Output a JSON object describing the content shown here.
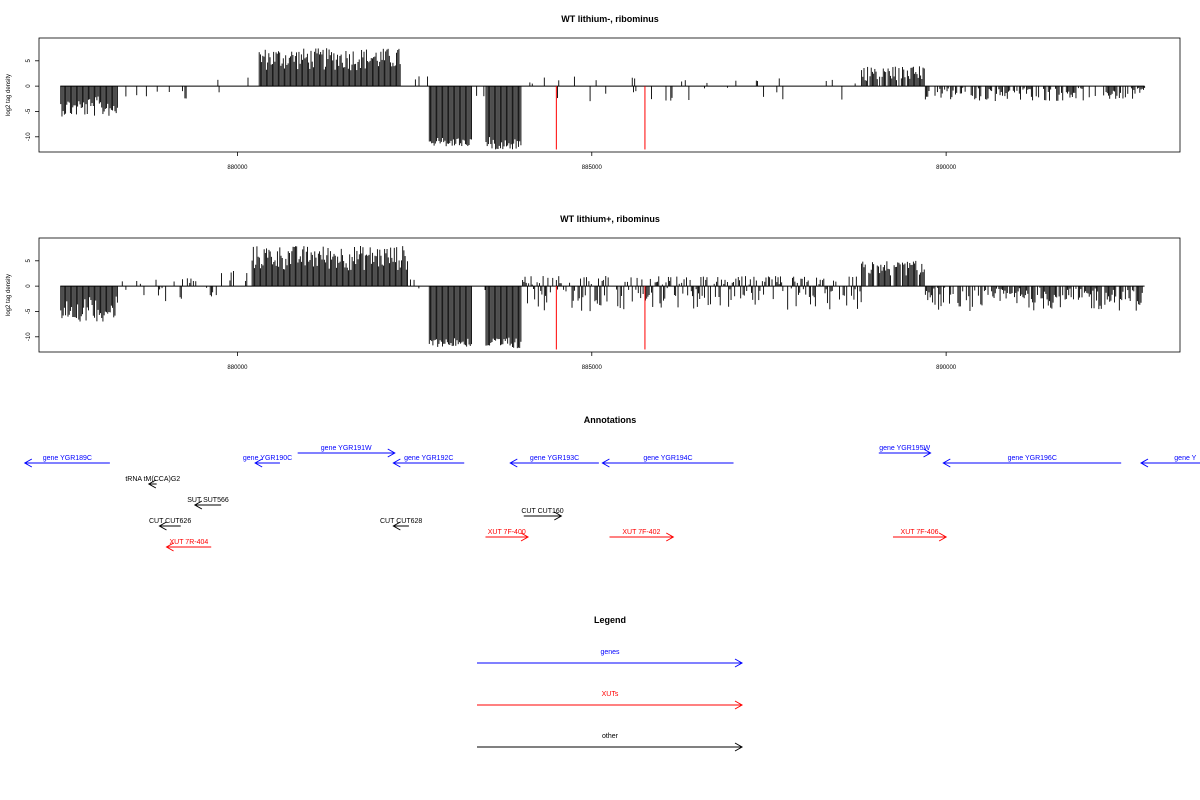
{
  "chart_data": [
    {
      "type": "bar",
      "title": "WT lithium-, ribominus",
      "ylabel": "log2 tag density",
      "xlim": [
        877200,
        893300
      ],
      "ylim": [
        -13,
        9.5
      ],
      "xticks": [
        880000,
        885000,
        890000
      ],
      "yticks": [
        5,
        0,
        -5,
        -10
      ],
      "xtick_labels": [
        "880000",
        "885000",
        "890000"
      ],
      "ytick_labels": [
        "5",
        "0",
        "-5",
        "-10"
      ],
      "profile": [
        {
          "from": 877500,
          "to": 878300,
          "values": [
            -2,
            -6
          ],
          "density": 1
        },
        {
          "from": 878300,
          "to": 879700,
          "values": [
            -3,
            0
          ],
          "density": 0.15
        },
        {
          "from": 879700,
          "to": 880200,
          "values": [
            -2,
            2
          ],
          "density": 0.2
        },
        {
          "from": 880300,
          "to": 882300,
          "values": [
            3,
            7.5
          ],
          "density": 1
        },
        {
          "from": 882300,
          "to": 882700,
          "values": [
            0,
            2
          ],
          "density": 0.2
        },
        {
          "from": 882700,
          "to": 883300,
          "values": [
            -10,
            -12
          ],
          "density": 1
        },
        {
          "from": 883300,
          "to": 883500,
          "values": [
            -3,
            0
          ],
          "density": 0.3
        },
        {
          "from": 883500,
          "to": 884000,
          "values": [
            -10,
            -12.5
          ],
          "density": 1
        },
        {
          "from": 884000,
          "to": 888800,
          "values": [
            -3,
            2
          ],
          "density": 0.15
        },
        {
          "from": 888800,
          "to": 889700,
          "values": [
            1,
            4
          ],
          "density": 0.8
        },
        {
          "from": 889700,
          "to": 892800,
          "values": [
            -3,
            0
          ],
          "density": 0.7
        }
      ],
      "highlight_x": [
        884500,
        885750
      ],
      "highlight_y": -12.5,
      "highlight_color": "#ff0000"
    },
    {
      "type": "bar",
      "title": "WT lithium+, ribominus",
      "ylabel": "log2 tag density",
      "xlim": [
        877200,
        893300
      ],
      "ylim": [
        -13,
        9.5
      ],
      "xticks": [
        880000,
        885000,
        890000
      ],
      "yticks": [
        5,
        0,
        -5,
        -10
      ],
      "xtick_labels": [
        "880000",
        "885000",
        "890000"
      ],
      "ytick_labels": [
        "5",
        "0",
        "-5",
        "-10"
      ],
      "profile": [
        {
          "from": 877500,
          "to": 878300,
          "values": [
            -2,
            -7
          ],
          "density": 1
        },
        {
          "from": 878300,
          "to": 879700,
          "values": [
            -3,
            2
          ],
          "density": 0.25
        },
        {
          "from": 879700,
          "to": 880200,
          "values": [
            0,
            3
          ],
          "density": 0.3
        },
        {
          "from": 880200,
          "to": 882400,
          "values": [
            3,
            8
          ],
          "density": 1
        },
        {
          "from": 882400,
          "to": 882700,
          "values": [
            -1,
            2
          ],
          "density": 0.3
        },
        {
          "from": 882700,
          "to": 883300,
          "values": [
            -10,
            -12
          ],
          "density": 1
        },
        {
          "from": 883300,
          "to": 883500,
          "values": [
            -2,
            0
          ],
          "density": 0.3
        },
        {
          "from": 883500,
          "to": 884000,
          "values": [
            -10,
            -12.5
          ],
          "density": 1
        },
        {
          "from": 884000,
          "to": 888800,
          "values": [
            -5,
            2
          ],
          "density": 0.85
        },
        {
          "from": 888800,
          "to": 889700,
          "values": [
            2,
            5
          ],
          "density": 0.9
        },
        {
          "from": 889700,
          "to": 892800,
          "values": [
            -5,
            0
          ],
          "density": 0.85
        }
      ],
      "highlight_x": [
        884500,
        885750
      ],
      "highlight_y": -12.5,
      "highlight_color": "#ff0000"
    }
  ],
  "annotations": {
    "title": "Annotations",
    "xlim": [
      877200,
      893300
    ],
    "features": [
      {
        "label": "gene YGR189C",
        "start": 878200,
        "end": 877000,
        "strand": "-",
        "row": 1,
        "color": "#0000ff"
      },
      {
        "label": "gene YGR190C",
        "start": 880600,
        "end": 880250,
        "strand": "-",
        "row": 1,
        "color": "#0000ff"
      },
      {
        "label": "gene YGR191W",
        "start": 880850,
        "end": 882220,
        "strand": "+",
        "row": 0,
        "color": "#0000ff"
      },
      {
        "label": "gene YGR192C",
        "start": 883200,
        "end": 882200,
        "strand": "-",
        "row": 1,
        "color": "#0000ff"
      },
      {
        "label": "gene YGR193C",
        "start": 885100,
        "end": 883850,
        "strand": "-",
        "row": 1,
        "color": "#0000ff"
      },
      {
        "label": "gene YGR194C",
        "start": 887000,
        "end": 885150,
        "strand": "-",
        "row": 1,
        "color": "#0000ff"
      },
      {
        "label": "gene YGR195W",
        "start": 889050,
        "end": 889780,
        "strand": "+",
        "row": 0,
        "color": "#0000ff"
      },
      {
        "label": "gene YGR196C",
        "start": 892470,
        "end": 889960,
        "strand": "-",
        "row": 1,
        "color": "#0000ff"
      },
      {
        "label": "gene Y",
        "start": 894000,
        "end": 892750,
        "strand": "-",
        "row": 1,
        "color": "#0000ff"
      },
      {
        "label": "tRNA tM(CCA)G2",
        "start": 878860,
        "end": 878750,
        "strand": "-",
        "row": 2,
        "color": "#000000"
      },
      {
        "label": "SUT SUT566",
        "start": 879770,
        "end": 879400,
        "strand": "-",
        "row": 3,
        "color": "#000000"
      },
      {
        "label": "CUT CUT160",
        "start": 884040,
        "end": 884570,
        "strand": "+",
        "row": 4,
        "color": "#000000"
      },
      {
        "label": "CUT CUT626",
        "start": 879200,
        "end": 878900,
        "strand": "-",
        "row": 5,
        "color": "#000000"
      },
      {
        "label": "CUT CUT628",
        "start": 882420,
        "end": 882200,
        "strand": "-",
        "row": 5,
        "color": "#000000"
      },
      {
        "label": "XUT 7F-400",
        "start": 883500,
        "end": 884100,
        "strand": "+",
        "row": 6,
        "color": "#ff0000"
      },
      {
        "label": "XUT 7F-402",
        "start": 885250,
        "end": 886150,
        "strand": "+",
        "row": 6,
        "color": "#ff0000"
      },
      {
        "label": "XUT 7F-406",
        "start": 889250,
        "end": 890000,
        "strand": "+",
        "row": 6,
        "color": "#ff0000"
      },
      {
        "label": "XUT 7R-404",
        "start": 879630,
        "end": 879000,
        "strand": "-",
        "row": 7,
        "color": "#ff0000"
      }
    ]
  },
  "legend": {
    "title": "Legend",
    "entries": [
      {
        "label": "genes",
        "color": "#0000ff"
      },
      {
        "label": "XUTs",
        "color": "#ff0000"
      },
      {
        "label": "other",
        "color": "#000000"
      }
    ]
  }
}
